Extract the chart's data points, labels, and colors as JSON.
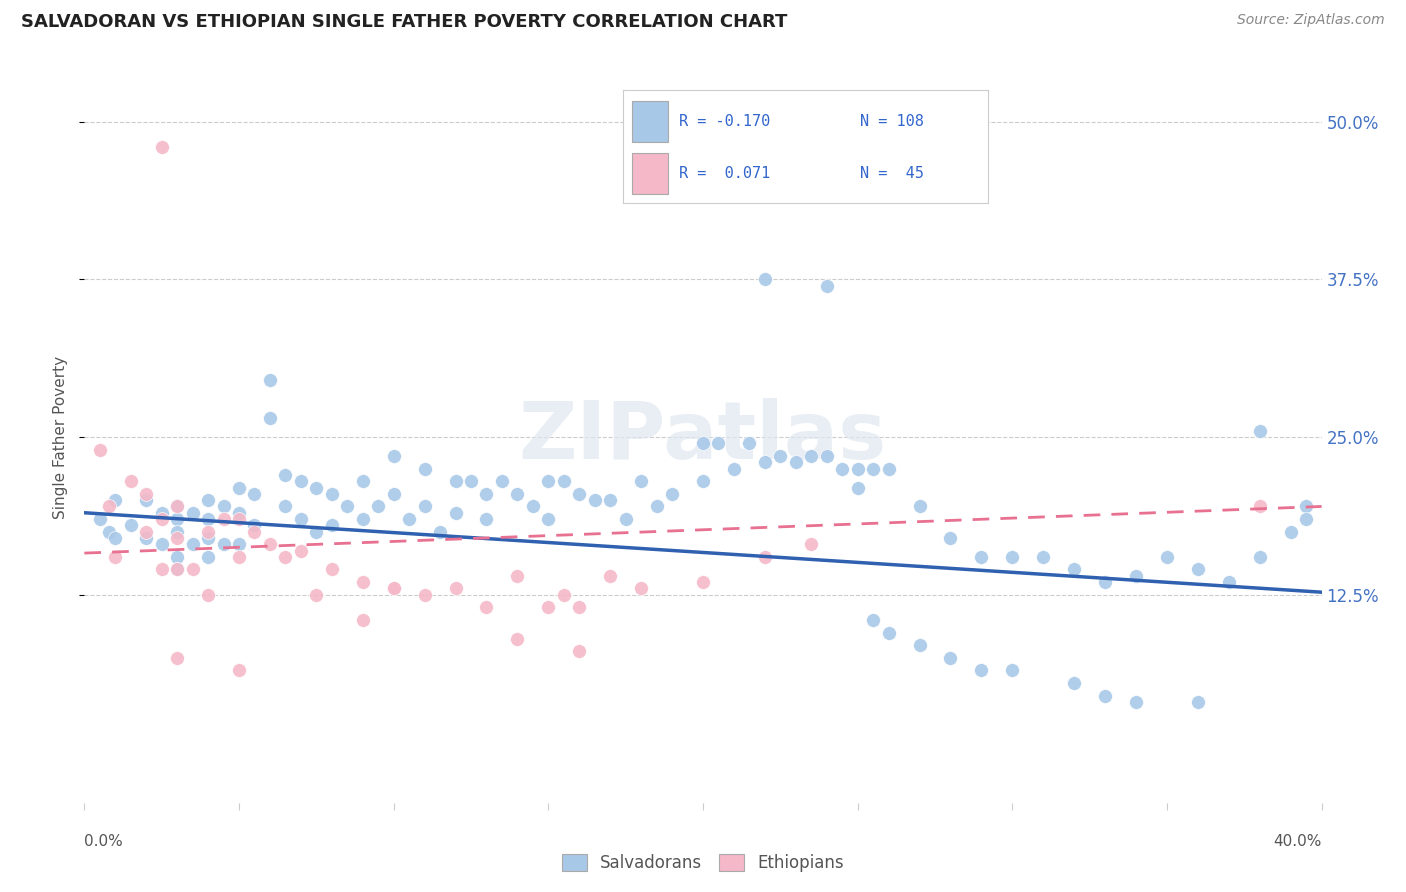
{
  "title": "SALVADORAN VS ETHIOPIAN SINGLE FATHER POVERTY CORRELATION CHART",
  "source": "Source: ZipAtlas.com",
  "ylabel": "Single Father Poverty",
  "legend_blue_label": "Salvadorans",
  "legend_pink_label": "Ethiopians",
  "blue_color": "#a8c8e8",
  "pink_color": "#f4b8c8",
  "blue_line_color": "#3060b0",
  "pink_line_color": "#e87090",
  "legend_text_color": "#3366cc",
  "watermark": "ZIPatlas",
  "xlim": [
    0.0,
    0.4
  ],
  "ylim": [
    -0.04,
    0.54
  ],
  "blue_trend_start_y": 0.19,
  "blue_trend_end_y": 0.127,
  "pink_trend_start_y": 0.158,
  "pink_trend_end_y": 0.195,
  "ytick_vals": [
    0.125,
    0.25,
    0.375,
    0.5
  ],
  "ytick_labels": [
    "12.5%",
    "25.0%",
    "37.5%",
    "50.0%"
  ],
  "blue_points_x": [
    0.005,
    0.008,
    0.01,
    0.01,
    0.015,
    0.02,
    0.02,
    0.025,
    0.025,
    0.03,
    0.03,
    0.03,
    0.03,
    0.03,
    0.035,
    0.035,
    0.04,
    0.04,
    0.04,
    0.04,
    0.045,
    0.045,
    0.05,
    0.05,
    0.05,
    0.055,
    0.055,
    0.06,
    0.06,
    0.065,
    0.065,
    0.07,
    0.07,
    0.075,
    0.075,
    0.08,
    0.08,
    0.085,
    0.09,
    0.09,
    0.095,
    0.1,
    0.1,
    0.105,
    0.11,
    0.11,
    0.115,
    0.12,
    0.12,
    0.125,
    0.13,
    0.13,
    0.135,
    0.14,
    0.145,
    0.15,
    0.15,
    0.155,
    0.16,
    0.165,
    0.17,
    0.175,
    0.18,
    0.185,
    0.19,
    0.2,
    0.2,
    0.205,
    0.21,
    0.215,
    0.22,
    0.225,
    0.23,
    0.235,
    0.24,
    0.245,
    0.25,
    0.25,
    0.255,
    0.26,
    0.27,
    0.28,
    0.29,
    0.3,
    0.31,
    0.32,
    0.33,
    0.34,
    0.35,
    0.36,
    0.37,
    0.38,
    0.39,
    0.395,
    0.22,
    0.24,
    0.255,
    0.26,
    0.27,
    0.28,
    0.29,
    0.3,
    0.32,
    0.33,
    0.34,
    0.36,
    0.38,
    0.395
  ],
  "blue_points_y": [
    0.185,
    0.175,
    0.2,
    0.17,
    0.18,
    0.2,
    0.17,
    0.19,
    0.165,
    0.195,
    0.185,
    0.175,
    0.155,
    0.145,
    0.19,
    0.165,
    0.2,
    0.185,
    0.17,
    0.155,
    0.195,
    0.165,
    0.21,
    0.19,
    0.165,
    0.205,
    0.18,
    0.295,
    0.265,
    0.22,
    0.195,
    0.215,
    0.185,
    0.21,
    0.175,
    0.205,
    0.18,
    0.195,
    0.215,
    0.185,
    0.195,
    0.235,
    0.205,
    0.185,
    0.225,
    0.195,
    0.175,
    0.215,
    0.19,
    0.215,
    0.205,
    0.185,
    0.215,
    0.205,
    0.195,
    0.215,
    0.185,
    0.215,
    0.205,
    0.2,
    0.2,
    0.185,
    0.215,
    0.195,
    0.205,
    0.245,
    0.215,
    0.245,
    0.225,
    0.245,
    0.23,
    0.235,
    0.23,
    0.235,
    0.235,
    0.225,
    0.225,
    0.21,
    0.225,
    0.225,
    0.195,
    0.17,
    0.155,
    0.155,
    0.155,
    0.145,
    0.135,
    0.14,
    0.155,
    0.145,
    0.135,
    0.155,
    0.175,
    0.195,
    0.375,
    0.37,
    0.105,
    0.095,
    0.085,
    0.075,
    0.065,
    0.065,
    0.055,
    0.045,
    0.04,
    0.04,
    0.255,
    0.185
  ],
  "pink_points_x": [
    0.005,
    0.008,
    0.01,
    0.015,
    0.02,
    0.02,
    0.025,
    0.025,
    0.03,
    0.03,
    0.03,
    0.035,
    0.04,
    0.04,
    0.045,
    0.05,
    0.05,
    0.055,
    0.06,
    0.065,
    0.07,
    0.075,
    0.08,
    0.09,
    0.1,
    0.11,
    0.12,
    0.13,
    0.14,
    0.15,
    0.155,
    0.16,
    0.17,
    0.18,
    0.2,
    0.22,
    0.235,
    0.14,
    0.16,
    0.09,
    0.1,
    0.38,
    0.025,
    0.03,
    0.05
  ],
  "pink_points_y": [
    0.24,
    0.195,
    0.155,
    0.215,
    0.205,
    0.175,
    0.185,
    0.145,
    0.195,
    0.17,
    0.145,
    0.145,
    0.175,
    0.125,
    0.185,
    0.185,
    0.155,
    0.175,
    0.165,
    0.155,
    0.16,
    0.125,
    0.145,
    0.135,
    0.13,
    0.125,
    0.13,
    0.115,
    0.14,
    0.115,
    0.125,
    0.115,
    0.14,
    0.13,
    0.135,
    0.155,
    0.165,
    0.09,
    0.08,
    0.105,
    0.13,
    0.195,
    0.48,
    0.075,
    0.065
  ]
}
